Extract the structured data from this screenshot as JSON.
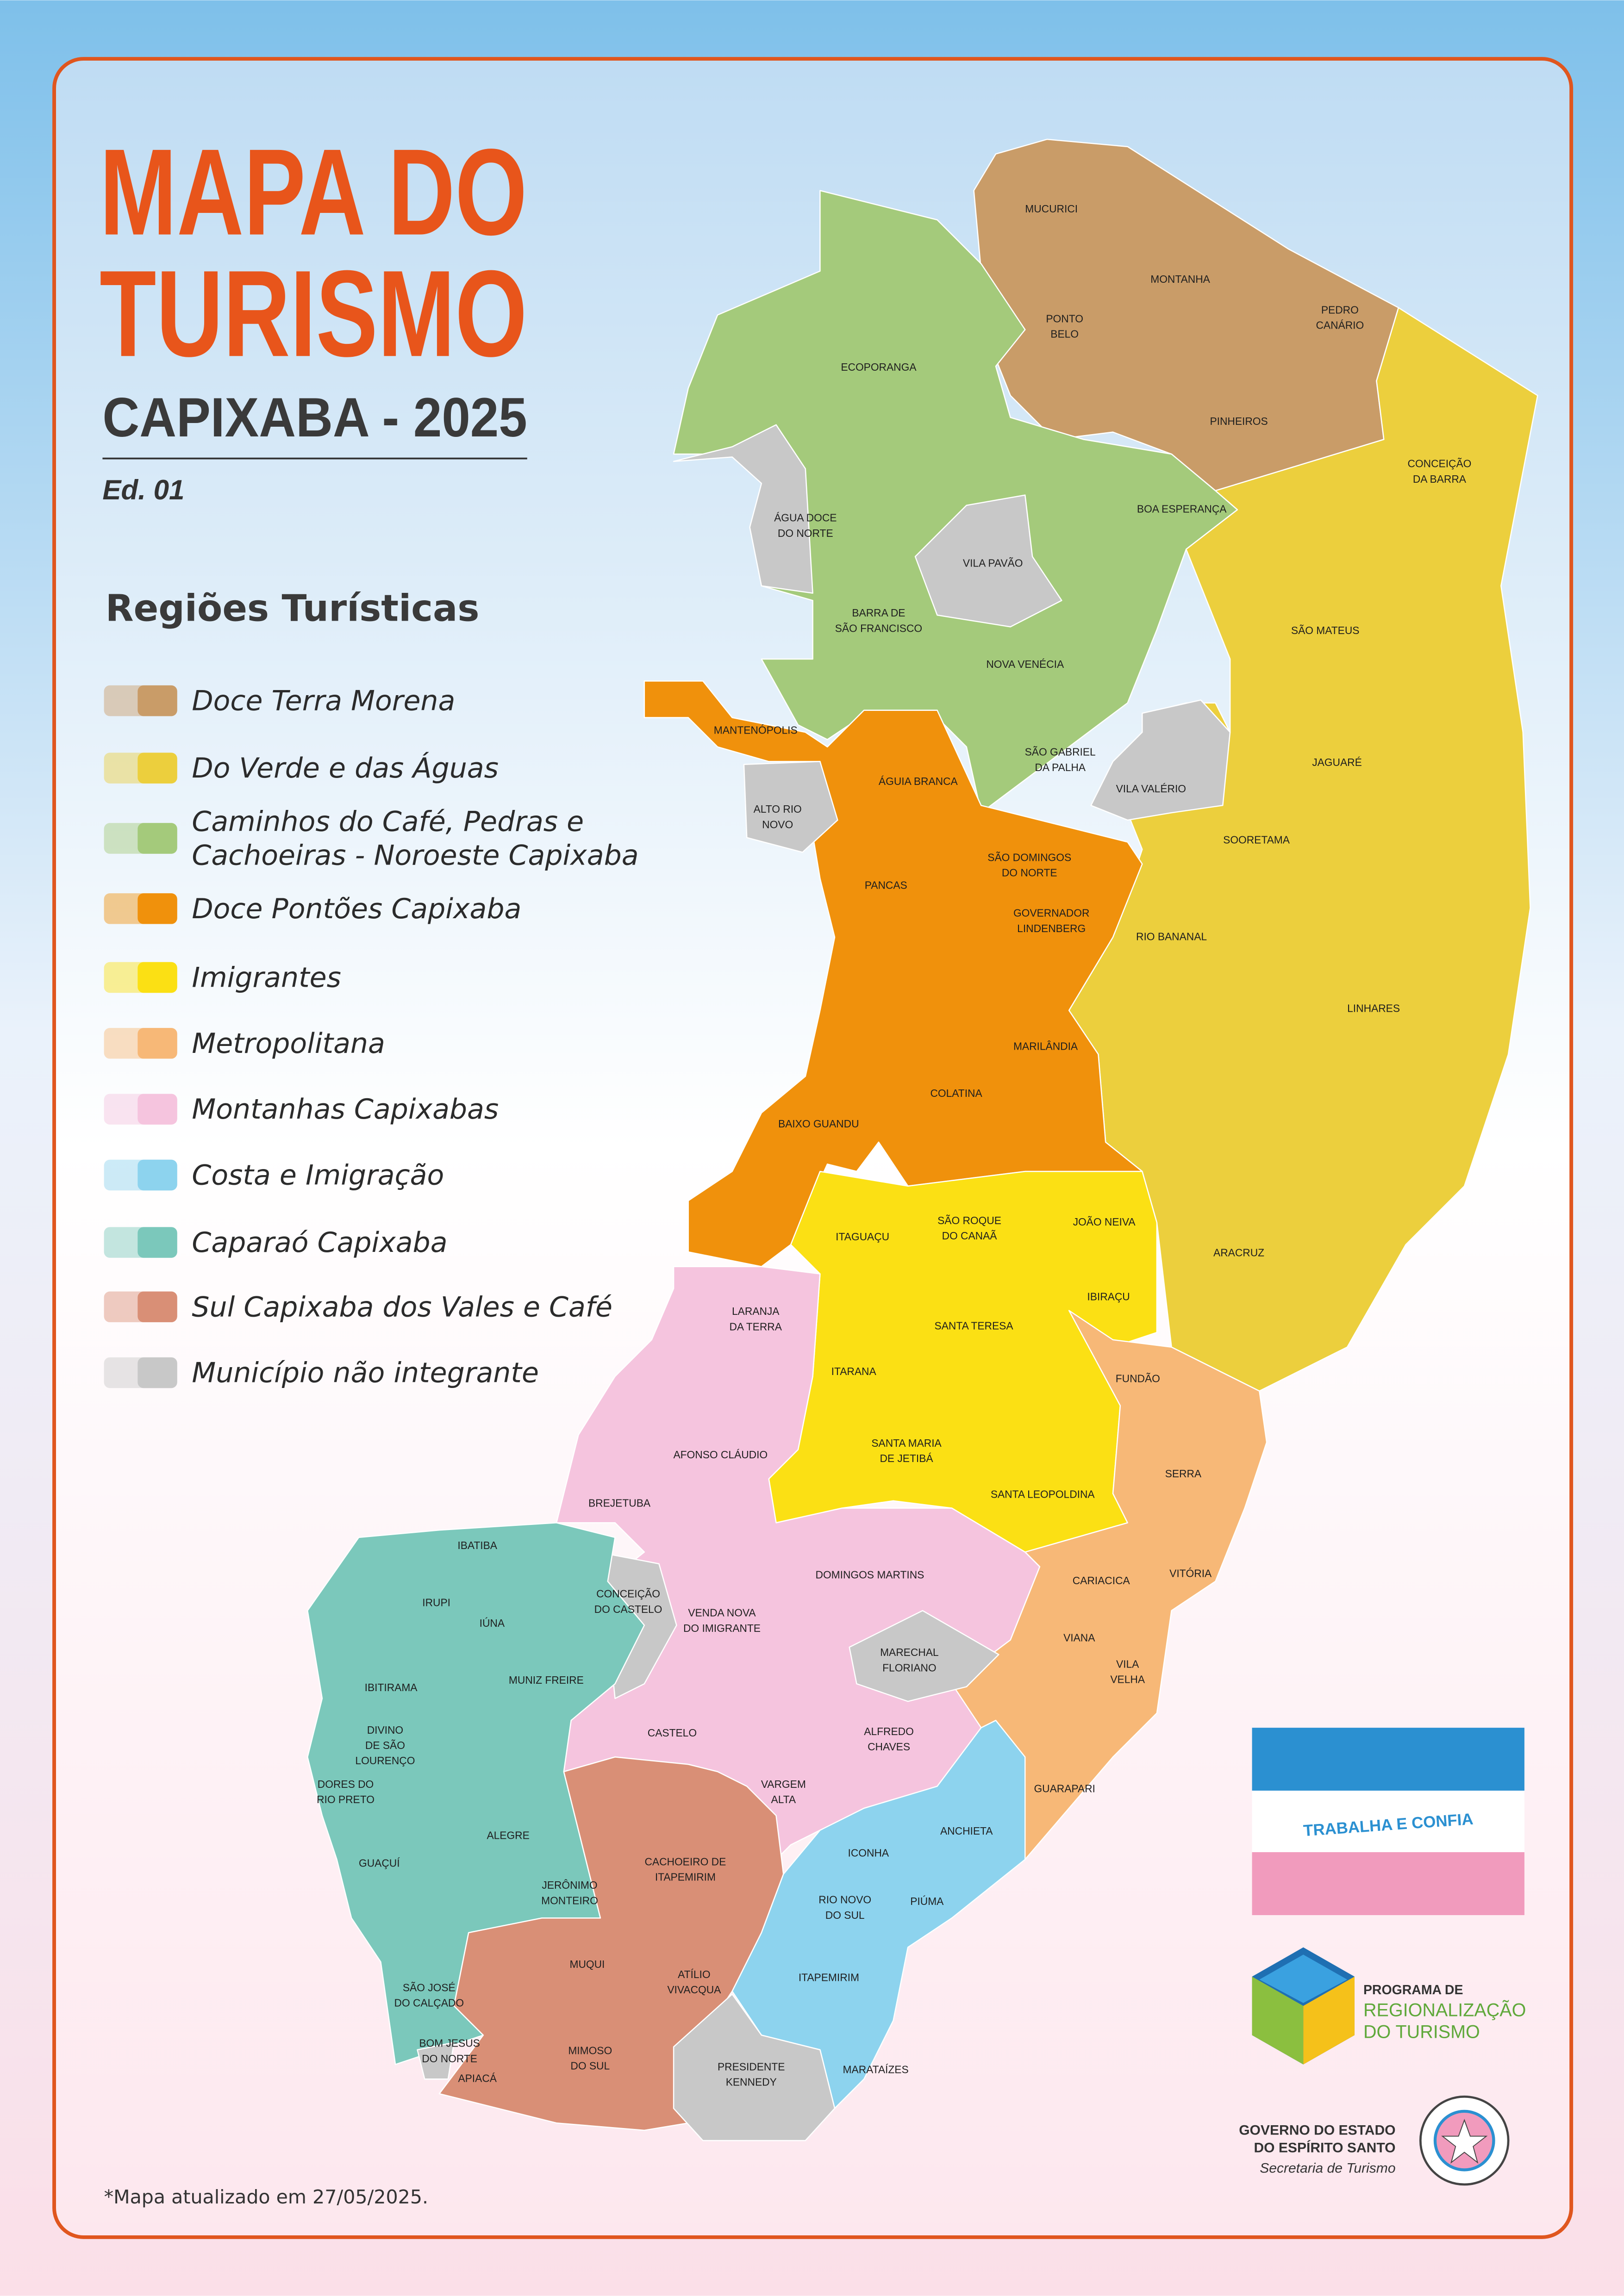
{
  "header": {
    "title_line1": "MAPA DO",
    "title_line2": "TURISMO",
    "subtitle": "CAPIXABA - 2025",
    "edition": "Ed. 01"
  },
  "legend": {
    "title": "Regiões Turísticas",
    "items": [
      {
        "lines": [
          "Doce Terra Morena"
        ],
        "color": "#c99c68"
      },
      {
        "lines": [
          "Do Verde e das Águas"
        ],
        "color": "#eccf3d"
      },
      {
        "lines": [
          "Caminhos do Café, Pedras e",
          "Cachoeiras - Noroeste Capixaba"
        ],
        "color": "#a4ca7b"
      },
      {
        "lines": [
          "Doce Pontões Capixaba"
        ],
        "color": "#f0910c"
      },
      {
        "lines": [
          "Imigrantes"
        ],
        "color": "#fbe014"
      },
      {
        "lines": [
          "Metropolitana"
        ],
        "color": "#f7b877"
      },
      {
        "lines": [
          "Montanhas Capixabas"
        ],
        "color": "#f5c4de"
      },
      {
        "lines": [
          "Costa e Imigração"
        ],
        "color": "#8dd3ee"
      },
      {
        "lines": [
          "Caparaó Capixaba"
        ],
        "color": "#7bc8bb"
      },
      {
        "lines": [
          "Sul Capixaba dos Vales e Café"
        ],
        "color": "#d98f76"
      },
      {
        "lines": [
          "Município não integrante"
        ],
        "color": "#c8c8c8"
      }
    ]
  },
  "municipalities": [
    [
      "MUCURICI"
    ],
    [
      "MONTANHA"
    ],
    [
      "PONTO",
      "BELO"
    ],
    [
      "PEDRO",
      "CANÁRIO"
    ],
    [
      "PINHEIROS"
    ],
    [
      "CONCEIÇÃO",
      "DA BARRA"
    ],
    [
      "ECOPORANGA"
    ],
    [
      "ÁGUA DOCE",
      "DO NORTE"
    ],
    [
      "BOA ESPERANÇA"
    ],
    [
      "VILA PAVÃO"
    ],
    [
      "BARRA DE",
      "SÃO FRANCISCO"
    ],
    [
      "SÃO MATEUS"
    ],
    [
      "NOVA VENÉCIA"
    ],
    [
      "MANTENÓPOLIS"
    ],
    [
      "SÃO GABRIEL",
      "DA PALHA"
    ],
    [
      "JAGUARÉ"
    ],
    [
      "ÁGUIA BRANCA"
    ],
    [
      "VILA VALÉRIO"
    ],
    [
      "ALTO RIO",
      "NOVO"
    ],
    [
      "SOORETAMA"
    ],
    [
      "SÃO DOMINGOS",
      "DO NORTE"
    ],
    [
      "PANCAS"
    ],
    [
      "GOVERNADOR",
      "LINDENBERG"
    ],
    [
      "RIO BANANAL"
    ],
    [
      "LINHARES"
    ],
    [
      "MARILÂNDIA"
    ],
    [
      "COLATINA"
    ],
    [
      "BAIXO GUANDU"
    ],
    [
      "JOÃO NEIVA"
    ],
    [
      "ITAGUAÇU"
    ],
    [
      "SÃO ROQUE",
      "DO CANAÃ"
    ],
    [
      "ARACRUZ"
    ],
    [
      "IBIRAÇU"
    ],
    [
      "LARANJA",
      "DA TERRA"
    ],
    [
      "SANTA TERESA"
    ],
    [
      "ITARANA"
    ],
    [
      "FUNDÃO"
    ],
    [
      "AFONSO CLÁUDIO"
    ],
    [
      "SANTA MARIA",
      "DE JETIBÁ"
    ],
    [
      "SERRA"
    ],
    [
      "BREJETUBA"
    ],
    [
      "SANTA LEOPOLDINA"
    ],
    [
      "IBATIBA"
    ],
    [
      "DOMINGOS MARTINS"
    ],
    [
      "CARIACICA"
    ],
    [
      "VITÓRIA"
    ],
    [
      "CONCEIÇÃO",
      "DO CASTELO"
    ],
    [
      "IRUPI"
    ],
    [
      "IÚNA"
    ],
    [
      "VENDA NOVA",
      "DO IMIGRANTE"
    ],
    [
      "VIANA"
    ],
    [
      "MARECHAL",
      "FLORIANO"
    ],
    [
      "MUNIZ FREIRE"
    ],
    [
      "VILA",
      "VELHA"
    ],
    [
      "IBITIRAMA"
    ],
    [
      "DIVINO",
      "DE SÃO",
      "LOURENÇO"
    ],
    [
      "CASTELO"
    ],
    [
      "ALFREDO",
      "CHAVES"
    ],
    [
      "GUARAPARI"
    ],
    [
      "DORES DO",
      "RIO PRETO"
    ],
    [
      "VARGEM",
      "ALTA"
    ],
    [
      "ANCHIETA"
    ],
    [
      "ALEGRE"
    ],
    [
      "ICONHA"
    ],
    [
      "CACHOEIRO DE",
      "ITAPEMIRIM"
    ],
    [
      "GUAÇUÍ"
    ],
    [
      "JERÔNIMO",
      "MONTEIRO"
    ],
    [
      "RIO NOVO",
      "DO SUL"
    ],
    [
      "PIÚMA"
    ],
    [
      "MUQUI"
    ],
    [
      "SÃO JOSÉ",
      "DO CALÇADO"
    ],
    [
      "ATÍLIO",
      "VIVACQUA"
    ],
    [
      "ITAPEMIRIM"
    ],
    [
      "BOM JESUS",
      "DO NORTE"
    ],
    [
      "MIMOSO",
      "DO SUL"
    ],
    [
      "PRESIDENTE",
      "KENNEDY"
    ],
    [
      "APIACÁ"
    ],
    [
      "MARATAÍZES"
    ]
  ],
  "flag": {
    "motto": "TRABALHA E CONFIA"
  },
  "program_logo": {
    "line1": "PROGRAMA DE",
    "line2": "REGIONALIZAÇÃO",
    "line3": "DO TURISMO"
  },
  "government": {
    "line1": "GOVERNO DO ESTADO",
    "line2": "DO ESPÍRITO SANTO",
    "line3": "Secretaria de Turismo"
  },
  "footnote": "*Mapa atualizado em 27/05/2025."
}
